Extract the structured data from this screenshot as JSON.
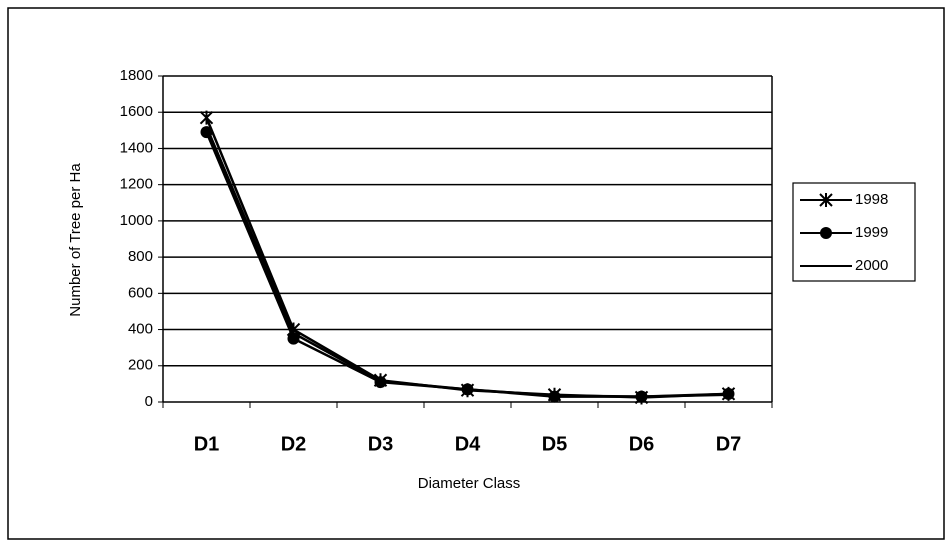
{
  "chart_data": {
    "type": "line",
    "x_label": "Diameter Class",
    "y_label": "Number of Tree per Ha",
    "categories": [
      "D1",
      "D2",
      "D3",
      "D4",
      "D5",
      "D6",
      "D7"
    ],
    "series": [
      {
        "name": "1998",
        "color": "#000000",
        "marker": "star",
        "values": [
          1570,
          400,
          120,
          65,
          40,
          25,
          45
        ]
      },
      {
        "name": "1999",
        "color": "#000000",
        "marker": "circle",
        "values": [
          1490,
          350,
          110,
          70,
          30,
          30,
          45
        ]
      },
      {
        "name": "2000",
        "color": "#000000",
        "marker": "none",
        "values": [
          1520,
          380,
          115,
          70,
          35,
          30,
          40
        ]
      }
    ],
    "ylim": [
      0,
      1800
    ],
    "yticks": [
      0,
      200,
      400,
      600,
      800,
      1000,
      1200,
      1400,
      1600,
      1800
    ],
    "grid": true,
    "legend": "right"
  }
}
